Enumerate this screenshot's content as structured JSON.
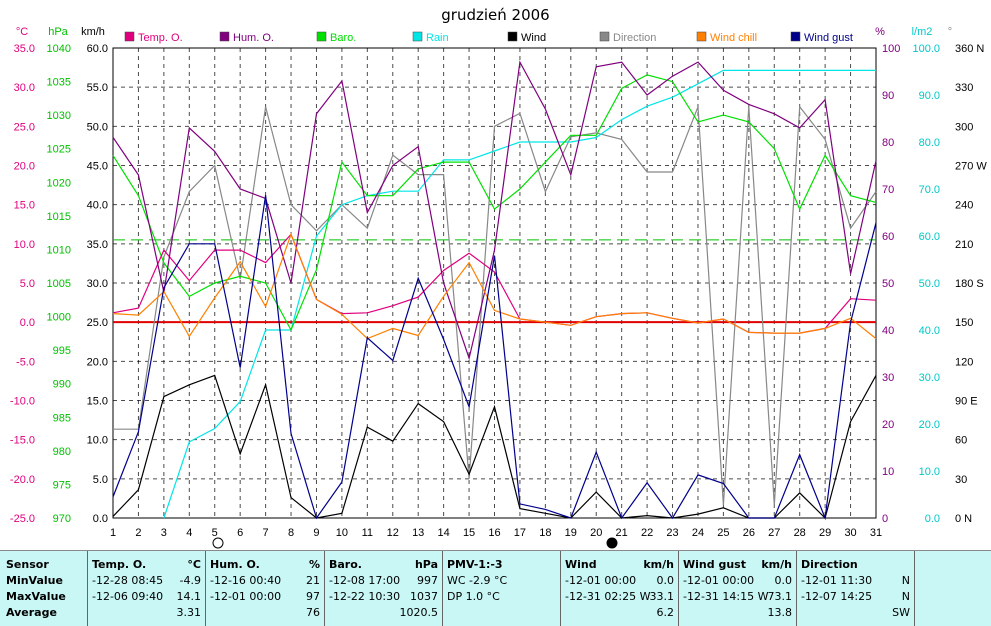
{
  "title": "grudzień 2006",
  "legend": [
    {
      "label": "Temp. O.",
      "color": "#e0007f"
    },
    {
      "label": "Hum. O.",
      "color": "#80007f"
    },
    {
      "label": "Baro.",
      "color": "#00e000"
    },
    {
      "label": "Rain",
      "color": "#00e6e6"
    },
    {
      "label": "Wind",
      "color": "#000000"
    },
    {
      "label": "Direction",
      "color": "#888888"
    },
    {
      "label": "Wind chill",
      "color": "#ff8000"
    },
    {
      "label": "Wind gust",
      "color": "#00008b"
    }
  ],
  "chart_data": {
    "type": "line",
    "x": [
      1,
      2,
      3,
      4,
      5,
      6,
      7,
      8,
      9,
      10,
      11,
      12,
      13,
      14,
      15,
      16,
      17,
      18,
      19,
      20,
      21,
      22,
      23,
      24,
      25,
      26,
      27,
      28,
      29,
      30,
      31
    ],
    "axes": {
      "temp": {
        "unit": "°C",
        "color": "#e0007f",
        "range": [
          -25,
          35
        ],
        "ticks": [
          "35.0",
          "30.0",
          "25.0",
          "20.0",
          "15.0",
          "10.0",
          "5.0",
          "0.0",
          "-5.0",
          "-10.0",
          "-15.0",
          "-20.0",
          "-25.0"
        ]
      },
      "baro": {
        "unit": "hPa",
        "color": "#00c000",
        "range": [
          970,
          1040
        ],
        "ticks": [
          "1040",
          "1035",
          "1030",
          "1025",
          "1020",
          "1015",
          "1010",
          "1005",
          "1000",
          "995",
          "990",
          "985",
          "980",
          "975",
          "970"
        ]
      },
      "wind": {
        "unit": "km/h",
        "color": "#000000",
        "range": [
          0,
          60
        ],
        "ticks": [
          "60.0",
          "55.0",
          "50.0",
          "45.0",
          "40.0",
          "35.0",
          "30.0",
          "25.0",
          "20.0",
          "15.0",
          "10.0",
          "5.0",
          "0.0"
        ]
      },
      "hum": {
        "unit": "%",
        "color": "#80007f",
        "range": [
          0,
          100
        ],
        "ticks": [
          "100",
          "90",
          "80",
          "70",
          "60",
          "50",
          "40",
          "30",
          "20",
          "10",
          "0"
        ]
      },
      "rain": {
        "unit": "l/m2",
        "color": "#00c8c8",
        "range": [
          0,
          105
        ],
        "ticks": [
          "100.0",
          "90.0",
          "80.0",
          "70.0",
          "60.0",
          "50.0",
          "40.0",
          "30.0",
          "20.0",
          "10.0",
          "0.0"
        ]
      },
      "dir": {
        "unit": "°",
        "color": "#000000",
        "range": [
          0,
          360
        ],
        "ticks": [
          "360 N",
          "330",
          "300",
          "270 W",
          "240",
          "210",
          "180 S",
          "150",
          "120",
          "90 E",
          "60",
          "30",
          "0 N"
        ]
      }
    },
    "ref_lines": [
      {
        "axis": "temp",
        "value": 0,
        "color": "#e00000"
      },
      {
        "axis": "temp",
        "value": 10.5,
        "color": "#00c000",
        "dashed": true
      }
    ],
    "series": [
      {
        "name": "Direction",
        "axis": "dir",
        "color": "#888888",
        "values": [
          68,
          68,
          200,
          250,
          270,
          183,
          315,
          240,
          220,
          240,
          222,
          278,
          263,
          263,
          30,
          300,
          310,
          250,
          292,
          295,
          290,
          265,
          265,
          315,
          10,
          315,
          10,
          315,
          290,
          222,
          250
        ]
      },
      {
        "name": "Rain",
        "axis": "rain",
        "color": "#00e6e6",
        "values": [
          null,
          null,
          0,
          17,
          20,
          26,
          42,
          42,
          63,
          70,
          72,
          73,
          73,
          80,
          80,
          82,
          84,
          84,
          84,
          85,
          89,
          92,
          94,
          97,
          100,
          100,
          100,
          100,
          100,
          100,
          100
        ]
      },
      {
        "name": "Baro.",
        "axis": "baro",
        "color": "#00e000",
        "values": [
          1024,
          1018,
          1008,
          1003,
          1005,
          1006,
          1005,
          998,
          1007,
          1023,
          1018,
          1018,
          1022,
          1023,
          1023,
          1016,
          1019,
          1023,
          1027,
          1027,
          1034,
          1036,
          1035,
          1029,
          1030,
          1029,
          1025,
          1016,
          1024,
          1018,
          1017
        ]
      },
      {
        "name": "Temp. O.",
        "axis": "temp",
        "color": "#e0007f",
        "values": [
          1.2,
          1.8,
          9.2,
          5.3,
          9.2,
          9.2,
          7.6,
          11.2,
          2.9,
          1.1,
          1.2,
          2.1,
          3.2,
          6.6,
          8.8,
          6.4,
          0.4,
          0.0,
          -0.4,
          0.7,
          1.1,
          1.2,
          0.5,
          -0.1,
          0.4,
          -1.3,
          -1.4,
          -1.4,
          -0.8,
          3.0,
          2.8
        ]
      },
      {
        "name": "Hum. O.",
        "axis": "hum",
        "color": "#80007f",
        "values": [
          81,
          73,
          48,
          83,
          78,
          70,
          68,
          50,
          86,
          93,
          65,
          75,
          79,
          50,
          34,
          57,
          97,
          87,
          73,
          96,
          97,
          90,
          94,
          97,
          91,
          88,
          86,
          83,
          89,
          52,
          76
        ]
      },
      {
        "name": "Wind chill",
        "axis": "temp",
        "color": "#ff8000",
        "values": [
          1.1,
          0.9,
          3.9,
          -1.8,
          3.1,
          7.7,
          2.0,
          11.2,
          2.9,
          1.0,
          -2.1,
          -0.8,
          -1.7,
          3.3,
          7.6,
          1.5,
          0.4,
          0.0,
          -0.4,
          0.7,
          1.1,
          1.2,
          0.5,
          -0.1,
          0.4,
          -1.3,
          -1.4,
          -1.4,
          -0.8,
          0.5,
          -2.1
        ]
      },
      {
        "name": "Wind",
        "axis": "wind",
        "color": "#000000",
        "values": [
          0.2,
          3.6,
          15.5,
          17,
          18.2,
          8.2,
          17,
          2.6,
          0,
          0.6,
          11.6,
          9.8,
          14.6,
          12.3,
          5.6,
          14.2,
          1.2,
          0.6,
          0,
          3.3,
          0,
          0.3,
          0,
          0.5,
          1.3,
          0,
          0,
          3.2,
          0,
          12.3,
          18.2
        ]
      },
      {
        "name": "Wind gust",
        "axis": "wind",
        "color": "#00008b",
        "values": [
          2.7,
          11,
          29.4,
          35,
          35,
          19.2,
          41.2,
          10.8,
          0,
          4.6,
          23,
          20.1,
          30.6,
          22.8,
          14.2,
          33.5,
          1.8,
          1.1,
          0,
          8.4,
          0,
          4.5,
          0,
          5.5,
          4.4,
          0,
          0,
          8.1,
          0,
          25,
          37.7
        ]
      }
    ]
  },
  "stats": {
    "sensor": {
      "header": "Sensor",
      "rows": [
        "MinValue",
        "MaxValue",
        "Average"
      ]
    },
    "temp": {
      "header": "Temp. O.",
      "unit": "°C",
      "min_when": "-12-28  08:45",
      "min": "-4.9",
      "max_when": "-12-06  09:40",
      "max": "14.1",
      "avg": "3.31"
    },
    "hum": {
      "header": "Hum. O.",
      "unit": "%",
      "min_when": "-12-16  00:40",
      "min": "21",
      "max_when": "-12-01  00:00",
      "max": "97",
      "avg": "76"
    },
    "baro": {
      "header": "Baro.",
      "unit": "hPa",
      "min_when": "-12-08  17:00",
      "min": "997",
      "max_when": "-12-22  10:30",
      "max": "1037",
      "avg": "1020.5"
    },
    "pmv": {
      "header": "PMV-1:-3",
      "line1": "WC -2.9 °C",
      "line2": "DP 1.0 °C"
    },
    "wind": {
      "header": "Wind",
      "unit": "km/h",
      "min_when": "-12-01  00:00",
      "min": "0.0",
      "max_when": "-12-31  02:25  W",
      "max": "33.1",
      "avg": "6.2"
    },
    "gust": {
      "header": "Wind gust",
      "unit": "km/h",
      "min_when": "-12-01  00:00",
      "min": "0.0",
      "max_when": "-12-31  14:15  W",
      "max": "73.1",
      "avg": "13.8"
    },
    "dir": {
      "header": "Direction",
      "min_when": "-12-01  11:30",
      "min": "N",
      "max_when": "-12-07  14:25",
      "max": "N",
      "avg": "SW"
    }
  }
}
